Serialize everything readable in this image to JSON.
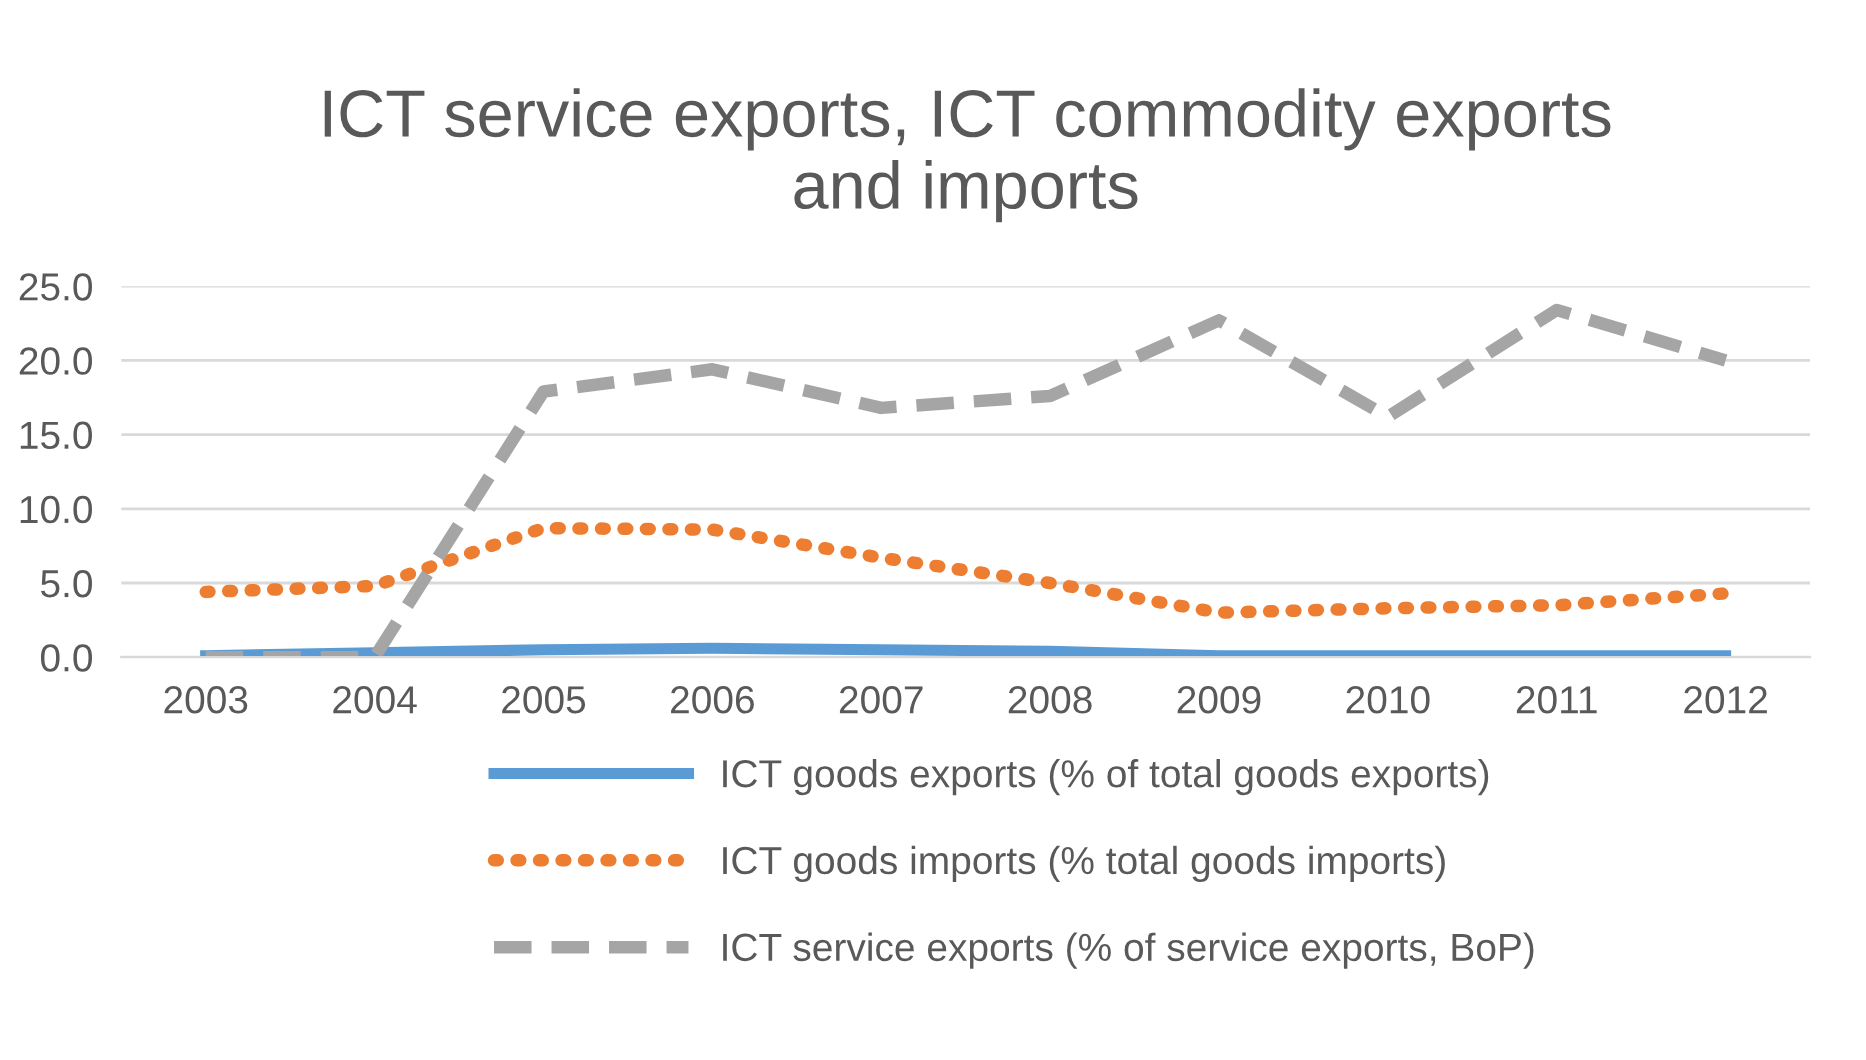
{
  "chart_data": {
    "type": "line",
    "title": "ICT service exports, ICT commodity exports\nand imports",
    "categories": [
      "2003",
      "2004",
      "2005",
      "2006",
      "2007",
      "2008",
      "2009",
      "2010",
      "2011",
      "2012"
    ],
    "series": [
      {
        "name": "ICT goods exports (% of total goods exports)",
        "color": "#5b9bd5",
        "line_style": "solid",
        "values": [
          0.1,
          0.3,
          0.5,
          0.6,
          0.5,
          0.4,
          0.1,
          0.1,
          0.1,
          0.1
        ]
      },
      {
        "name": "ICT goods imports (% total goods imports)",
        "color": "#ed7d31",
        "line_style": "dotted",
        "values": [
          4.4,
          4.8,
          8.7,
          8.6,
          6.7,
          5.0,
          3.0,
          3.3,
          3.5,
          4.3
        ]
      },
      {
        "name": "ICT service exports (% of service exports, BoP)",
        "color": "#a5a5a5",
        "line_style": "dashed",
        "values": [
          0.0,
          0.0,
          17.9,
          19.4,
          16.8,
          17.6,
          22.7,
          16.2,
          23.4,
          20.0
        ]
      }
    ],
    "ylim": [
      0,
      25
    ],
    "yticks": [
      {
        "value": 0,
        "label": "0.0"
      },
      {
        "value": 5,
        "label": "5.0"
      },
      {
        "value": 10,
        "label": "10.0"
      },
      {
        "value": 15,
        "label": "15.0"
      },
      {
        "value": 20,
        "label": "20.0"
      },
      {
        "value": 25,
        "label": "25.0"
      }
    ],
    "grid": "y",
    "legend": "bottom",
    "marker": "none"
  }
}
